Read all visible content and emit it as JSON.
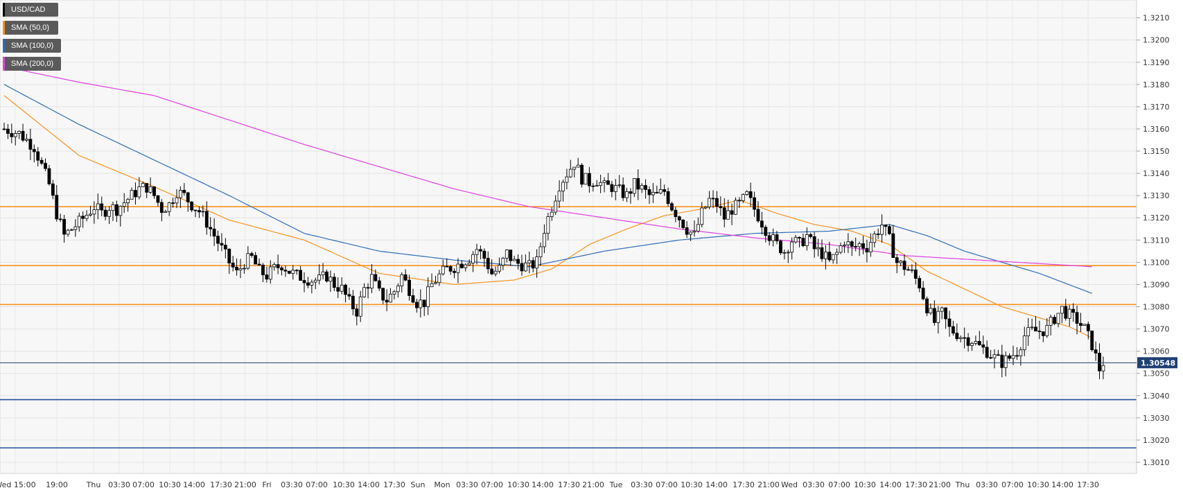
{
  "chart_data": {
    "type": "candlestick",
    "symbol": "USD/CAD",
    "ylim": [
      1.3005,
      1.3218
    ],
    "y_ticks": [
      "1.3010",
      "1.3020",
      "1.3030",
      "1.3040",
      "1.3050",
      "1.3060",
      "1.3070",
      "1.3080",
      "1.3090",
      "1.3100",
      "1.3110",
      "1.3120",
      "1.3130",
      "1.3140",
      "1.3150",
      "1.3160",
      "1.3170",
      "1.3180",
      "1.3190",
      "1.3200",
      "1.3210"
    ],
    "x_ticks": [
      "Wed 15:00",
      "19:00",
      "Thu",
      "03:30",
      "07:00",
      "10:30",
      "14:00",
      "17:30",
      "21:00",
      "Fri",
      "03:30",
      "07:00",
      "10:30",
      "14:00",
      "17:30",
      "Sun",
      "Mon",
      "03:30",
      "07:00",
      "10:30",
      "14:00",
      "17:30",
      "21:00",
      "Tue",
      "03:30",
      "07:00",
      "10:30",
      "14:00",
      "17:30",
      "21:00",
      "Wed",
      "03:30",
      "07:00",
      "10:30",
      "14:00",
      "17:30",
      "21:00",
      "Thu",
      "03:30",
      "07:00",
      "10:30",
      "14:00",
      "17:30"
    ],
    "current_price": "1.30548",
    "grid": true,
    "legend_position": "top-left",
    "legend": [
      {
        "name": "USD/CAD",
        "color": "#000000"
      },
      {
        "name": "SMA (50,0)",
        "color": "#f7931e"
      },
      {
        "name": "SMA (100,0)",
        "color": "#2f6db5"
      },
      {
        "name": "SMA (200,0)",
        "color": "#e040e0"
      }
    ],
    "horizontal_levels": [
      {
        "value": 1.3125,
        "color": "#f7931e"
      },
      {
        "value": 1.30985,
        "color": "#f7931e"
      },
      {
        "value": 1.3081,
        "color": "#f7931e"
      },
      {
        "value": 1.30382,
        "color": "#1f4e9e"
      },
      {
        "value": 1.30165,
        "color": "#1f4e9e"
      }
    ],
    "price_anchors": [
      [
        0,
        1.316
      ],
      [
        4,
        1.3158
      ],
      [
        8,
        1.3152
      ],
      [
        12,
        1.3135
      ],
      [
        14,
        1.3122
      ],
      [
        16,
        1.3112
      ],
      [
        18,
        1.3115
      ],
      [
        20,
        1.3118
      ],
      [
        24,
        1.3125
      ],
      [
        26,
        1.3122
      ],
      [
        28,
        1.3125
      ],
      [
        30,
        1.3124
      ],
      [
        32,
        1.3127
      ],
      [
        34,
        1.313
      ],
      [
        36,
        1.3133
      ],
      [
        38,
        1.3134
      ],
      [
        40,
        1.313
      ],
      [
        42,
        1.3124
      ],
      [
        44,
        1.3126
      ],
      [
        46,
        1.3132
      ],
      [
        48,
        1.313
      ],
      [
        50,
        1.3126
      ],
      [
        52,
        1.3123
      ],
      [
        54,
        1.3118
      ],
      [
        56,
        1.3112
      ],
      [
        58,
        1.3106
      ],
      [
        60,
        1.31
      ],
      [
        62,
        1.3095
      ],
      [
        64,
        1.31
      ],
      [
        66,
        1.3102
      ],
      [
        68,
        1.3096
      ],
      [
        70,
        1.3094
      ],
      [
        72,
        1.3097
      ],
      [
        74,
        1.3099
      ],
      [
        76,
        1.3096
      ],
      [
        78,
        1.3094
      ],
      [
        80,
        1.3093
      ],
      [
        82,
        1.3092
      ],
      [
        84,
        1.3092
      ],
      [
        86,
        1.3094
      ],
      [
        88,
        1.309
      ],
      [
        90,
        1.3088
      ],
      [
        92,
        1.3082
      ],
      [
        94,
        1.3078
      ],
      [
        96,
        1.3088
      ],
      [
        98,
        1.3093
      ],
      [
        100,
        1.3086
      ],
      [
        102,
        1.3083
      ],
      [
        104,
        1.3087
      ],
      [
        106,
        1.3094
      ],
      [
        108,
        1.3088
      ],
      [
        110,
        1.3082
      ],
      [
        112,
        1.3082
      ],
      [
        114,
        1.309
      ],
      [
        116,
        1.3094
      ],
      [
        118,
        1.3097
      ],
      [
        120,
        1.3098
      ],
      [
        122,
        1.31
      ],
      [
        124,
        1.3102
      ],
      [
        126,
        1.3106
      ],
      [
        128,
        1.3102
      ],
      [
        130,
        1.3095
      ],
      [
        132,
        1.3097
      ],
      [
        134,
        1.3104
      ],
      [
        136,
        1.31
      ],
      [
        138,
        1.3099
      ],
      [
        140,
        1.3098
      ],
      [
        142,
        1.31
      ],
      [
        144,
        1.3115
      ],
      [
        146,
        1.3125
      ],
      [
        148,
        1.3135
      ],
      [
        150,
        1.314
      ],
      [
        152,
        1.3145
      ],
      [
        154,
        1.3138
      ],
      [
        156,
        1.3136
      ],
      [
        158,
        1.3137
      ],
      [
        160,
        1.3134
      ],
      [
        162,
        1.3134
      ],
      [
        164,
        1.3132
      ],
      [
        166,
        1.313
      ],
      [
        168,
        1.3135
      ],
      [
        170,
        1.3133
      ],
      [
        172,
        1.313
      ],
      [
        174,
        1.313
      ],
      [
        176,
        1.3132
      ],
      [
        178,
        1.3125
      ],
      [
        180,
        1.312
      ],
      [
        182,
        1.3115
      ],
      [
        184,
        1.3112
      ],
      [
        186,
        1.3122
      ],
      [
        188,
        1.3128
      ],
      [
        190,
        1.3126
      ],
      [
        192,
        1.312
      ],
      [
        194,
        1.3124
      ],
      [
        196,
        1.3126
      ],
      [
        198,
        1.313
      ],
      [
        200,
        1.3124
      ],
      [
        202,
        1.3118
      ],
      [
        204,
        1.3112
      ],
      [
        206,
        1.3108
      ],
      [
        208,
        1.3105
      ],
      [
        210,
        1.311
      ],
      [
        212,
        1.3108
      ],
      [
        214,
        1.3112
      ],
      [
        216,
        1.3106
      ],
      [
        218,
        1.3104
      ],
      [
        220,
        1.31
      ],
      [
        222,
        1.3104
      ],
      [
        224,
        1.311
      ],
      [
        226,
        1.3106
      ],
      [
        228,
        1.3108
      ],
      [
        230,
        1.3107
      ],
      [
        232,
        1.3112
      ],
      [
        234,
        1.3117
      ],
      [
        236,
        1.311
      ],
      [
        238,
        1.31
      ],
      [
        240,
        1.3098
      ],
      [
        242,
        1.3095
      ],
      [
        244,
        1.309
      ],
      [
        246,
        1.308
      ],
      [
        248,
        1.3073
      ],
      [
        250,
        1.3077
      ],
      [
        252,
        1.307
      ],
      [
        254,
        1.3068
      ],
      [
        256,
        1.3066
      ],
      [
        258,
        1.3065
      ],
      [
        260,
        1.3062
      ],
      [
        262,
        1.306
      ],
      [
        264,
        1.3057
      ],
      [
        266,
        1.3055
      ],
      [
        268,
        1.3057
      ],
      [
        270,
        1.306
      ],
      [
        272,
        1.3067
      ],
      [
        274,
        1.3069
      ],
      [
        276,
        1.3069
      ],
      [
        278,
        1.307
      ],
      [
        280,
        1.3075
      ],
      [
        282,
        1.3079
      ],
      [
        284,
        1.3076
      ],
      [
        286,
        1.3074
      ],
      [
        288,
        1.307
      ],
      [
        290,
        1.3063
      ],
      [
        292,
        1.3052
      ],
      [
        293,
        1.3055
      ]
    ],
    "sma_50": [
      [
        0,
        1.3175
      ],
      [
        20,
        1.3148
      ],
      [
        40,
        1.3134
      ],
      [
        60,
        1.3119
      ],
      [
        80,
        1.311
      ],
      [
        100,
        1.3095
      ],
      [
        120,
        1.309
      ],
      [
        136,
        1.3092
      ],
      [
        146,
        1.3097
      ],
      [
        156,
        1.3108
      ],
      [
        166,
        1.3115
      ],
      [
        176,
        1.3121
      ],
      [
        186,
        1.3124
      ],
      [
        196,
        1.3128
      ],
      [
        206,
        1.3122
      ],
      [
        216,
        1.3117
      ],
      [
        226,
        1.3114
      ],
      [
        236,
        1.3108
      ],
      [
        246,
        1.3096
      ],
      [
        256,
        1.3088
      ],
      [
        266,
        1.308
      ],
      [
        276,
        1.3075
      ],
      [
        284,
        1.3071
      ],
      [
        290,
        1.3066
      ]
    ],
    "sma_100": [
      [
        0,
        1.318
      ],
      [
        20,
        1.3162
      ],
      [
        40,
        1.3146
      ],
      [
        60,
        1.313
      ],
      [
        80,
        1.3113
      ],
      [
        100,
        1.3105
      ],
      [
        120,
        1.3101
      ],
      [
        140,
        1.3098
      ],
      [
        160,
        1.3105
      ],
      [
        180,
        1.311
      ],
      [
        200,
        1.3113
      ],
      [
        220,
        1.3114
      ],
      [
        236,
        1.3117
      ],
      [
        246,
        1.3112
      ],
      [
        256,
        1.3105
      ],
      [
        266,
        1.31
      ],
      [
        276,
        1.3095
      ],
      [
        290,
        1.3086
      ]
    ],
    "sma_200": [
      [
        0,
        1.3188
      ],
      [
        20,
        1.3181
      ],
      [
        40,
        1.3175
      ],
      [
        60,
        1.3164
      ],
      [
        80,
        1.3153
      ],
      [
        100,
        1.3143
      ],
      [
        120,
        1.3133
      ],
      [
        140,
        1.3125
      ],
      [
        160,
        1.312
      ],
      [
        180,
        1.3115
      ],
      [
        200,
        1.3111
      ],
      [
        220,
        1.3108
      ],
      [
        240,
        1.3103
      ],
      [
        260,
        1.3101
      ],
      [
        280,
        1.3099
      ],
      [
        290,
        1.3098
      ]
    ]
  }
}
